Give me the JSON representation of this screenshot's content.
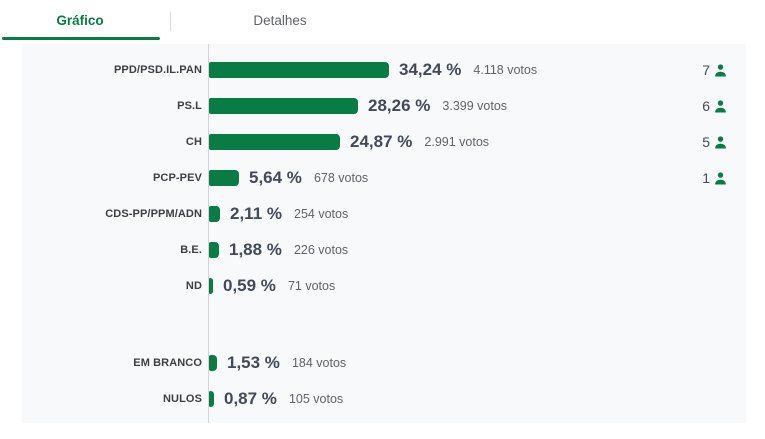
{
  "tabs": {
    "grafico": {
      "label": "Gráfico",
      "active": true
    },
    "detalhes": {
      "label": "Detalhes",
      "active": false
    }
  },
  "colors": {
    "accent_green": "#087c44",
    "percent_text": "#424a57",
    "label_text": "#3c4043",
    "muted_text": "#5f6368",
    "card_background": "#f8f9fb",
    "axis_line": "#d2d6da"
  },
  "chart_data": {
    "type": "bar",
    "orientation": "horizontal",
    "unit": "%",
    "x_range_percent": [
      0,
      36
    ],
    "grid": false,
    "rows": [
      {
        "label": "PPD/PSD.IL.PAN",
        "value": 34.24,
        "pct_label": "34,24 %",
        "votes": 4118,
        "votes_label": "4.118 votos",
        "seats": 7
      },
      {
        "label": "PS.L",
        "value": 28.26,
        "pct_label": "28,26 %",
        "votes": 3399,
        "votes_label": "3.399 votos",
        "seats": 6
      },
      {
        "label": "CH",
        "value": 24.87,
        "pct_label": "24,87 %",
        "votes": 2991,
        "votes_label": "2.991 votos",
        "seats": 5
      },
      {
        "label": "PCP-PEV",
        "value": 5.64,
        "pct_label": "5,64 %",
        "votes": 678,
        "votes_label": "678 votos",
        "seats": 1
      },
      {
        "label": "CDS-PP/PPM/ADN",
        "value": 2.11,
        "pct_label": "2,11 %",
        "votes": 254,
        "votes_label": "254 votos"
      },
      {
        "label": "B.E.",
        "value": 1.88,
        "pct_label": "1,88 %",
        "votes": 226,
        "votes_label": "226 votos"
      },
      {
        "label": "ND",
        "value": 0.59,
        "pct_label": "0,59 %",
        "votes": 71,
        "votes_label": "71 votos"
      },
      {
        "label": "EM BRANCO",
        "value": 1.53,
        "pct_label": "1,53 %",
        "votes": 184,
        "votes_label": "184 votos"
      },
      {
        "label": "NULOS",
        "value": 0.87,
        "pct_label": "0,87 %",
        "votes": 105,
        "votes_label": "105 votos"
      }
    ]
  }
}
